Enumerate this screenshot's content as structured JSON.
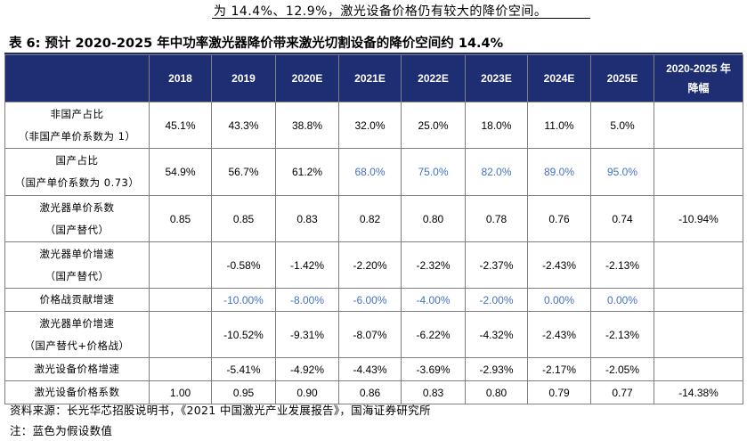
{
  "top_text": "为 14.4%、12.9%，激光设备价格仍有较大的降价空间。",
  "caption": "表 6:  预计 2020-2025 年中功率激光器降价带来激光切割设备的降价空间约 14.4%",
  "table": {
    "headers": [
      "",
      "2018",
      "2019",
      "2020E",
      "2021E",
      "2022E",
      "2023E",
      "2024E",
      "2025E",
      "2020-2025 年降幅"
    ],
    "header_last_lines": [
      "2020-2025 年",
      "降幅"
    ],
    "rows": [
      {
        "label": [
          "非国产占比",
          "（非国产单价系数为 1）"
        ],
        "cells": [
          "45.1%",
          "43.3%",
          "38.8%",
          "32.0%",
          "25.0%",
          "18.0%",
          "11.0%",
          "5.0%",
          ""
        ],
        "blue": [
          false,
          false,
          false,
          false,
          false,
          false,
          false,
          false,
          false
        ]
      },
      {
        "label": [
          "国产占比",
          "（国产单价系数为 0.73）"
        ],
        "cells": [
          "54.9%",
          "56.7%",
          "61.2%",
          "68.0%",
          "75.0%",
          "82.0%",
          "89.0%",
          "95.0%",
          ""
        ],
        "blue": [
          false,
          false,
          false,
          true,
          true,
          true,
          true,
          true,
          false
        ]
      },
      {
        "label": [
          "激光器单价系数",
          "（国产替代）"
        ],
        "cells": [
          "0.85",
          "0.85",
          "0.83",
          "0.82",
          "0.80",
          "0.78",
          "0.76",
          "0.74",
          "-10.94%"
        ],
        "blue": [
          false,
          false,
          false,
          false,
          false,
          false,
          false,
          false,
          false
        ]
      },
      {
        "label": [
          "激光器单价增速",
          "（国产替代）"
        ],
        "cells": [
          "",
          "-0.58%",
          "-1.42%",
          "-2.20%",
          "-2.32%",
          "-2.37%",
          "-2.43%",
          "-2.13%",
          ""
        ],
        "blue": [
          false,
          false,
          false,
          false,
          false,
          false,
          false,
          false,
          false
        ]
      },
      {
        "label": [
          "价格战贡献增速"
        ],
        "cells": [
          "",
          "-10.00%",
          "-8.00%",
          "-6.00%",
          "-4.00%",
          "-2.00%",
          "0.00%",
          "0.00%",
          ""
        ],
        "blue": [
          false,
          true,
          true,
          true,
          true,
          true,
          true,
          true,
          false
        ]
      },
      {
        "label": [
          "激光器单价增速",
          "（国产替代+价格战）"
        ],
        "cells": [
          "",
          "-10.52%",
          "-9.31%",
          "-8.07%",
          "-6.22%",
          "-4.32%",
          "-2.43%",
          "-2.13%",
          ""
        ],
        "blue": [
          false,
          false,
          false,
          false,
          false,
          false,
          false,
          false,
          false
        ]
      },
      {
        "label": [
          "激光设备价格增速"
        ],
        "cells": [
          "",
          "-5.41%",
          "-4.92%",
          "-4.43%",
          "-3.69%",
          "-2.93%",
          "-2.17%",
          "-2.05%",
          ""
        ],
        "blue": [
          false,
          false,
          false,
          false,
          false,
          false,
          false,
          false,
          false
        ]
      },
      {
        "label": [
          "激光设备价格系数"
        ],
        "cells": [
          "1.00",
          "0.95",
          "0.90",
          "0.86",
          "0.83",
          "0.80",
          "0.79",
          "0.77",
          "-14.38%"
        ],
        "blue": [
          false,
          false,
          false,
          false,
          false,
          false,
          false,
          false,
          false
        ]
      }
    ]
  },
  "source": "资料来源：长光华芯招股说明书，《2021 中国激光产业发展报告》，国海证券研究所",
  "note": "注：蓝色为假设数值",
  "colors": {
    "header_bg": "#1d2e73",
    "assumed_value_blue": "#4472c4",
    "border": "#7f7f7f"
  }
}
